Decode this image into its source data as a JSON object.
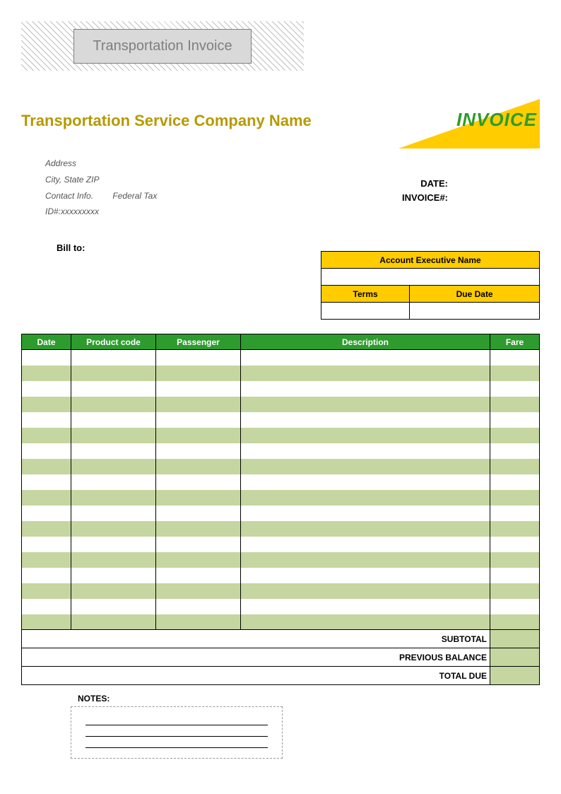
{
  "colors": {
    "olive": "#b59a00",
    "yellow": "#ffcc00",
    "green": "#2e9b2e",
    "row_alt": "#c5d6a0",
    "title_bg": "#d9d9d9",
    "title_text": "#7f7f7f",
    "hatch": "#bfbfbf"
  },
  "title_box": "Transportation Invoice",
  "company_name": "Transportation Service Company Name",
  "invoice_label": "INVOICE",
  "company_info": {
    "address": "Address",
    "city": "City, State ZIP",
    "contact": "Contact Info.",
    "federal_tax": "Federal Tax",
    "id": "ID#:xxxxxxxxx"
  },
  "meta": {
    "date_label": "DATE:",
    "invoice_no_label": "INVOICE#:"
  },
  "bill_to_label": "Bill to:",
  "exec_table": {
    "header1": "Account Executive Name",
    "terms_label": "Terms",
    "due_label": "Due Date"
  },
  "main_table": {
    "headers": {
      "date": "Date",
      "code": "Product code",
      "passenger": "Passenger",
      "description": "Description",
      "fare": "Fare"
    },
    "row_count": 18
  },
  "summary": {
    "subtotal": "SUBTOTAL",
    "previous_balance": "PREVIOUS BALANCE",
    "total_due": "TOTAL DUE"
  },
  "notes_label": "NOTES:"
}
